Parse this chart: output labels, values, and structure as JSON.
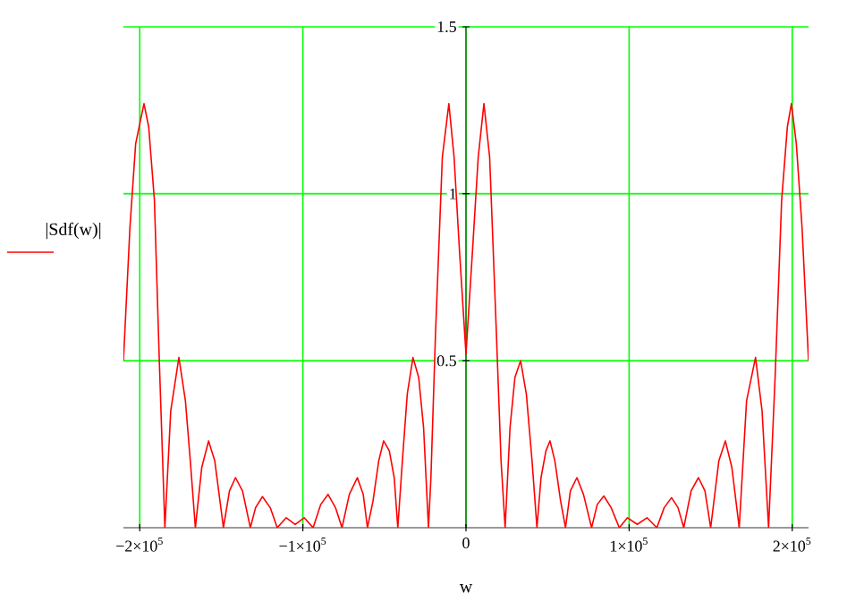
{
  "chart_data": {
    "type": "line",
    "xlabel": "w",
    "ylabel": "|Sdf(w)|",
    "xlim": [
      -210000,
      210000
    ],
    "ylim": [
      0,
      1.5
    ],
    "xticks": [
      {
        "value": -200000,
        "label": "−2×10$^{5}$"
      },
      {
        "value": -100000,
        "label": "−1×10$^{5}$"
      },
      0,
      {
        "value": 100000,
        "label": "1×10$^{5}$"
      },
      {
        "value": 200000,
        "label": "2×10$^{5}$"
      }
    ],
    "yticks": [
      0.5,
      1,
      1.5
    ],
    "grid": true,
    "line_style": "solid",
    "marker": "none",
    "series": [
      {
        "color": "#ff0000",
        "x": [
          -210000,
          -206000,
          -202500,
          -197400,
          -194500,
          -191000,
          -188000,
          -184600,
          -181000,
          -176000,
          -172000,
          -169000,
          -165900,
          -162000,
          -157800,
          -154000,
          -148700,
          -145000,
          -141300,
          -137000,
          -132200,
          -129000,
          -124800,
          -120000,
          -115700,
          -110200,
          -104700,
          -99200,
          -93700,
          -89000,
          -84600,
          -80000,
          -76000,
          -71500,
          -66600,
          -63000,
          -60400,
          -57000,
          -53500,
          -50500,
          -47000,
          -44000,
          -41800,
          -39000,
          -36000,
          -32500,
          -29000,
          -26000,
          -23000,
          -21500,
          -18700,
          -14500,
          -10500,
          -7300,
          -4000,
          0,
          4000,
          7500,
          11000,
          14500,
          18500,
          21500,
          24000,
          27000,
          30000,
          33500,
          37000,
          40500,
          43500,
          46000,
          49000,
          51500,
          54500,
          58000,
          61000,
          64000,
          68000,
          72000,
          77000,
          80500,
          84500,
          89000,
          94000,
          99000,
          105000,
          111000,
          117000,
          121500,
          126000,
          130000,
          133500,
          138000,
          142500,
          146500,
          150000,
          155000,
          159000,
          163000,
          167500,
          172000,
          177500,
          181500,
          185500,
          189500,
          193500,
          197000,
          199500,
          202500,
          206000,
          210000
        ],
        "values": [
          0.5,
          0.9,
          1.15,
          1.27,
          1.2,
          0.98,
          0.5,
          0,
          0.35,
          0.51,
          0.38,
          0.2,
          0,
          0.18,
          0.26,
          0.2,
          0,
          0.11,
          0.15,
          0.11,
          0,
          0.06,
          0.093,
          0.06,
          0,
          0.03,
          0.01,
          0.03,
          0,
          0.07,
          0.1,
          0.06,
          0,
          0.1,
          0.15,
          0.1,
          0,
          0.08,
          0.2,
          0.26,
          0.23,
          0.15,
          0,
          0.2,
          0.4,
          0.51,
          0.45,
          0.3,
          0,
          0.15,
          0.58,
          1.11,
          1.27,
          1.11,
          0.83,
          0.52,
          0.83,
          1.11,
          1.27,
          1.11,
          0.6,
          0.2,
          0,
          0.3,
          0.45,
          0.5,
          0.4,
          0.2,
          0,
          0.15,
          0.23,
          0.26,
          0.2,
          0.08,
          0,
          0.11,
          0.15,
          0.1,
          0,
          0.07,
          0.095,
          0.06,
          0,
          0.03,
          0.01,
          0.03,
          0,
          0.06,
          0.09,
          0.06,
          0,
          0.11,
          0.15,
          0.11,
          0,
          0.2,
          0.26,
          0.18,
          0,
          0.38,
          0.51,
          0.35,
          0,
          0.45,
          0.98,
          1.2,
          1.27,
          1.15,
          0.9,
          0.5
        ]
      }
    ]
  }
}
